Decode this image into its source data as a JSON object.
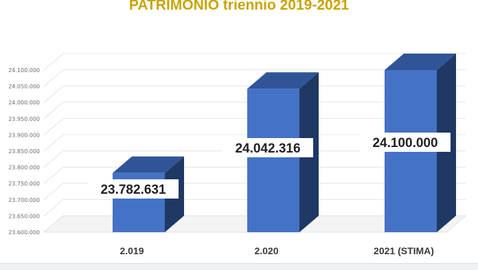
{
  "chart_data": {
    "type": "bar",
    "title": "PATRIMONIO triennio 2019-2021",
    "categories": [
      "2.019",
      "2.020",
      "2021 (STIMA)"
    ],
    "values": [
      23782631,
      24042316,
      24100000
    ],
    "data_labels": [
      "23.782.631",
      "24.042.316",
      "24.100.000"
    ],
    "ylim": [
      23600000,
      24100000
    ],
    "yticks": [
      23600000,
      23650000,
      23700000,
      23750000,
      23800000,
      23850000,
      23900000,
      23950000,
      24000000,
      24050000,
      24100000
    ],
    "ytick_labels": [
      "23.600.000",
      "23.650.000",
      "23.700.000",
      "23.750.000",
      "23.800.000",
      "23.850.000",
      "23.900.000",
      "23.950.000",
      "24.000.000",
      "24.050.000",
      "24.100.000"
    ],
    "xlabel": "",
    "ylabel": "",
    "grid": true,
    "legend": "none",
    "style": "3d-column",
    "colors": {
      "front": "#4472c4",
      "top": "#2f5597",
      "side": "#1f3864",
      "title": "#c9a400"
    }
  }
}
